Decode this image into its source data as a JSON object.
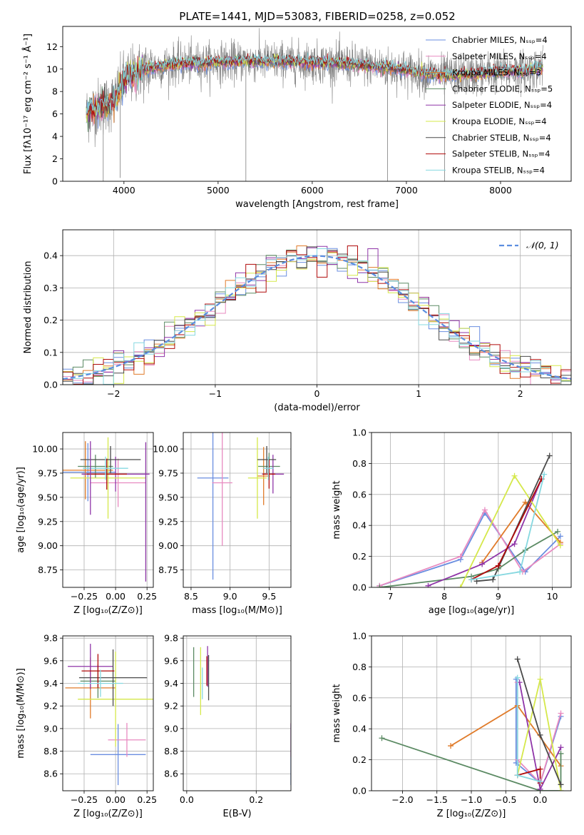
{
  "title": "PLATE=1441, MJD=53083, FIBERID=0258, z=0.052",
  "colors": {
    "Chabrier MILES": "#6a8ee0",
    "Salpeter MILES": "#e88ac0",
    "Kroupa MILES": "#e07b2a",
    "Chabrier ELODIE": "#5b8a63",
    "Salpeter ELODIE": "#8f35a8",
    "Kroupa ELODIE": "#d5e84a",
    "Chabrier STELIB": "#4a4a4a",
    "Salpeter STELIB": "#b00a0a",
    "Kroupa STELIB": "#86d8e0",
    "data": "#7f7f7f",
    "normal": "#5b8ee0"
  },
  "chart_data": [
    {
      "id": "spectrum",
      "type": "line",
      "title": "PLATE=1441, MJD=53083, FIBERID=0258, z=0.052",
      "xlabel": "wavelength [Angstrom, rest frame]",
      "ylabel": "Flux [fλ10⁻¹⁷ erg cm⁻² s⁻¹ Å⁻¹]",
      "xlim": [
        3350,
        8750
      ],
      "ylim": [
        0,
        13.8
      ],
      "xticks": [
        4000,
        5000,
        6000,
        7000,
        8000
      ],
      "yticks": [
        0,
        2,
        4,
        6,
        8,
        10,
        12
      ],
      "legend_position": "top-right",
      "continuum_x": [
        3600,
        3700,
        3800,
        3900,
        4000,
        4100,
        4200,
        4300,
        4500,
        4700,
        5000,
        5300,
        5600,
        6000,
        6300,
        6600,
        6900,
        7000,
        7200,
        7300,
        7500,
        7700,
        7900,
        8100,
        8300,
        8450
      ],
      "continuum_y": [
        6.0,
        6.5,
        6.8,
        7.2,
        9.0,
        9.5,
        9.9,
        10.1,
        10.4,
        10.5,
        10.6,
        10.7,
        10.7,
        10.6,
        10.5,
        10.3,
        10.0,
        9.9,
        9.6,
        9.5,
        9.4,
        9.5,
        9.7,
        9.8,
        9.9,
        10.2
      ],
      "series": [
        {
          "name": "Chabrier MILES",
          "label": "Chabrier MILES, Nₛₛₚ=4",
          "nssp": 4
        },
        {
          "name": "Salpeter MILES",
          "label": "Salpeter MILES, Nₛₛₚ=4",
          "nssp": 4
        },
        {
          "name": "Kroupa MILES",
          "label": "Kroupa MILES, Nₛₛₚ=3",
          "nssp": 3
        },
        {
          "name": "Chabrier ELODIE",
          "label": "Chabrier ELODIE, Nₛₛₚ=5",
          "nssp": 5
        },
        {
          "name": "Salpeter ELODIE",
          "label": "Salpeter ELODIE, Nₛₛₚ=4",
          "nssp": 4
        },
        {
          "name": "Kroupa ELODIE",
          "label": "Kroupa ELODIE, Nₛₛₚ=4",
          "nssp": 4
        },
        {
          "name": "Chabrier STELIB",
          "label": "Chabrier STELIB, Nₛₛₚ=4",
          "nssp": 4
        },
        {
          "name": "Salpeter STELIB",
          "label": "Salpeter STELIB, Nₛₛₚ=4",
          "nssp": 4
        },
        {
          "name": "Kroupa STELIB",
          "label": "Kroupa STELIB, Nₛₛₚ=4",
          "nssp": 4
        }
      ]
    },
    {
      "id": "residuals",
      "type": "line",
      "xlabel": "(data-model)/error",
      "ylabel": "Normed distribution",
      "xlim": [
        -2.5,
        2.5
      ],
      "ylim": [
        0,
        0.48
      ],
      "xticks": [
        -2,
        -1,
        0,
        1,
        2
      ],
      "yticks": [
        0.0,
        0.1,
        0.2,
        0.3,
        0.4
      ],
      "grid": true,
      "legend": "𝒩(0, 1)",
      "legend_position": "top-right",
      "bin_width": 0.1
    },
    {
      "id": "age_vs_Z",
      "type": "scatter",
      "xlabel": "Z [log₁₀(Z/Z⊙)]",
      "ylabel": "age  [log₁₀(age/yr)]",
      "xlim": [
        -0.42,
        0.3
      ],
      "ylim": [
        8.57,
        10.17
      ],
      "xticks": [
        -0.25,
        0.0,
        0.25
      ],
      "yticks": [
        8.75,
        9.0,
        9.25,
        9.5,
        9.75,
        10.0
      ],
      "grid": true,
      "points": [
        {
          "series": "Chabrier MILES",
          "x": -0.22,
          "y": 9.76,
          "xerr": 0.22,
          "yerr": 0.3
        },
        {
          "series": "Salpeter MILES",
          "x": 0.02,
          "y": 9.65,
          "xerr": 0.22,
          "yerr": 0.25
        },
        {
          "series": "Kroupa MILES",
          "x": -0.24,
          "y": 9.78,
          "xerr": 0.22,
          "yerr": 0.3
        },
        {
          "series": "Chabrier ELODIE",
          "x": -0.16,
          "y": 9.82,
          "xerr": 0.14,
          "yerr": 0.12
        },
        {
          "series": "Salpeter ELODIE",
          "x": 0.0,
          "y": 9.74,
          "xerr": 0.27,
          "yerr": 0.18
        },
        {
          "series": "Kroupa ELODIE",
          "x": -0.06,
          "y": 9.7,
          "xerr": 0.3,
          "yerr": 0.42
        },
        {
          "series": "Chabrier STELIB",
          "x": -0.04,
          "y": 9.89,
          "xerr": 0.24,
          "yerr": 0.14
        },
        {
          "series": "Salpeter STELIB",
          "x": -0.07,
          "y": 9.74,
          "xerr": 0.16,
          "yerr": 0.16
        },
        {
          "series": "Kroupa STELIB",
          "x": -0.08,
          "y": 9.8,
          "xerr": 0.18,
          "yerr": 0.12
        },
        {
          "series": "Salpeter ELODIE",
          "x": 0.24,
          "y": 9.35,
          "xerr": 0.0,
          "yerr": 0.72
        },
        {
          "series": "Salpeter ELODIE",
          "x": -0.2,
          "y": 9.7,
          "xerr": 0.0,
          "yerr": 0.38
        }
      ]
    },
    {
      "id": "age_vs_mass",
      "type": "scatter",
      "xlabel": "mass [log₁₀(M/M⊙)]",
      "ylabel": "",
      "xlim": [
        8.4,
        9.78
      ],
      "ylim": [
        8.57,
        10.17
      ],
      "xticks": [
        8.5,
        9.0,
        9.5
      ],
      "yticks": [
        8.75,
        9.0,
        9.25,
        9.5,
        9.75,
        10.0
      ],
      "grid": true,
      "points": [
        {
          "series": "Chabrier MILES",
          "x": 8.78,
          "y": 9.7,
          "xerr": 0.2,
          "yerr": 1.05
        },
        {
          "series": "Salpeter MILES",
          "x": 8.9,
          "y": 9.65,
          "xerr": 0.13,
          "yerr": 0.65
        },
        {
          "series": "Kroupa MILES",
          "x": 9.43,
          "y": 9.72,
          "xerr": 0.08,
          "yerr": 0.3
        },
        {
          "series": "Chabrier ELODIE",
          "x": 9.5,
          "y": 9.82,
          "xerr": 0.14,
          "yerr": 0.14
        },
        {
          "series": "Salpeter ELODIE",
          "x": 9.55,
          "y": 9.74,
          "xerr": 0.14,
          "yerr": 0.2
        },
        {
          "series": "Kroupa ELODIE",
          "x": 9.35,
          "y": 9.7,
          "xerr": 0.12,
          "yerr": 0.42
        },
        {
          "series": "Chabrier STELIB",
          "x": 9.47,
          "y": 9.89,
          "xerr": 0.12,
          "yerr": 0.14
        },
        {
          "series": "Salpeter STELIB",
          "x": 9.5,
          "y": 9.74,
          "xerr": 0.08,
          "yerr": 0.15
        },
        {
          "series": "Kroupa STELIB",
          "x": 9.49,
          "y": 9.8,
          "xerr": 0.07,
          "yerr": 0.12
        }
      ]
    },
    {
      "id": "weight_vs_age",
      "type": "line",
      "xlabel": "age  [log₁₀(age/yr)]",
      "ylabel": "mass weight",
      "xlim": [
        6.65,
        10.35
      ],
      "ylim": [
        0,
        1.0
      ],
      "xticks": [
        7,
        8,
        9,
        10
      ],
      "yticks": [
        0.0,
        0.2,
        0.4,
        0.6,
        0.8,
        1.0
      ],
      "grid": true,
      "series": [
        {
          "name": "Chabrier MILES",
          "x": [
            6.8,
            8.3,
            8.75,
            9.5,
            10.15
          ],
          "y": [
            0.01,
            0.18,
            0.48,
            0.1,
            0.33
          ]
        },
        {
          "name": "Salpeter MILES",
          "x": [
            6.8,
            8.3,
            8.75,
            9.45,
            10.15
          ],
          "y": [
            0.01,
            0.2,
            0.5,
            0.1,
            0.28
          ]
        },
        {
          "name": "Kroupa MILES",
          "x": [
            8.7,
            9.5,
            10.15
          ],
          "y": [
            0.16,
            0.55,
            0.29
          ]
        },
        {
          "name": "Chabrier ELODIE",
          "x": [
            6.8,
            8.5,
            9.0,
            9.5,
            10.1
          ],
          "y": [
            0.0,
            0.07,
            0.12,
            0.24,
            0.36
          ]
        },
        {
          "name": "Salpeter ELODIE",
          "x": [
            7.7,
            8.7,
            9.3,
            9.8
          ],
          "y": [
            0.01,
            0.15,
            0.28,
            0.7
          ]
        },
        {
          "name": "Kroupa ELODIE",
          "x": [
            8.3,
            9.3,
            10.15
          ],
          "y": [
            0.0,
            0.72,
            0.27
          ]
        },
        {
          "name": "Chabrier STELIB",
          "x": [
            8.6,
            8.9,
            9.95
          ],
          "y": [
            0.04,
            0.05,
            0.85
          ]
        },
        {
          "name": "Salpeter STELIB",
          "x": [
            8.5,
            9.0,
            9.8
          ],
          "y": [
            0.05,
            0.14,
            0.7
          ]
        },
        {
          "name": "Kroupa STELIB",
          "x": [
            8.5,
            9.4,
            9.85
          ],
          "y": [
            0.05,
            0.1,
            0.73
          ]
        }
      ]
    },
    {
      "id": "mass_vs_Z",
      "type": "scatter",
      "xlabel": "Z [log₁₀(Z/Z⊙)]",
      "ylabel": "mass [log₁₀(M/M⊙)]",
      "xlim": [
        -0.42,
        0.3
      ],
      "ylim": [
        8.45,
        9.82
      ],
      "xticks": [
        -0.25,
        0.0,
        0.25
      ],
      "yticks": [
        8.6,
        8.8,
        9.0,
        9.2,
        9.4,
        9.6,
        9.8
      ],
      "grid": true,
      "points": [
        {
          "series": "Chabrier MILES",
          "x": 0.02,
          "y": 8.77,
          "xerr": 0.22,
          "yerr": 0.27
        },
        {
          "series": "Salpeter MILES",
          "x": 0.09,
          "y": 8.9,
          "xerr": 0.15,
          "yerr": 0.15
        },
        {
          "series": "Kroupa MILES",
          "x": -0.2,
          "y": 9.36,
          "xerr": 0.2,
          "yerr": 0.27
        },
        {
          "series": "Chabrier ELODIE",
          "x": -0.14,
          "y": 9.42,
          "xerr": 0.14,
          "yerr": 0.15
        },
        {
          "series": "Salpeter ELODIE",
          "x": -0.2,
          "y": 9.55,
          "xerr": 0.18,
          "yerr": 0.2
        },
        {
          "series": "Kroupa ELODIE",
          "x": 0.0,
          "y": 9.26,
          "xerr": 0.3,
          "yerr": 0.42
        },
        {
          "series": "Chabrier STELIB",
          "x": -0.02,
          "y": 9.45,
          "xerr": 0.27,
          "yerr": 0.25
        },
        {
          "series": "Salpeter STELIB",
          "x": -0.14,
          "y": 9.51,
          "xerr": 0.13,
          "yerr": 0.15
        },
        {
          "series": "Kroupa STELIB",
          "x": -0.12,
          "y": 9.4,
          "xerr": 0.18,
          "yerr": 0.12
        }
      ]
    },
    {
      "id": "mass_vs_ebv",
      "type": "scatter",
      "xlabel": "E(B-V)",
      "ylabel": "",
      "xlim": [
        -0.01,
        0.3
      ],
      "ylim": [
        8.45,
        9.82
      ],
      "xticks": [
        0.0,
        0.2
      ],
      "yticks": [
        8.6,
        8.8,
        9.0,
        9.2,
        9.4,
        9.6,
        9.8
      ],
      "grid": true,
      "points": [
        {
          "series": "Chabrier MILES",
          "x": 0.3,
          "y": 8.77,
          "xerr": 0.0,
          "yerr": 0.27
        },
        {
          "series": "Salpeter MILES",
          "x": 0.3,
          "y": 8.9,
          "xerr": 0.0,
          "yerr": 0.15
        },
        {
          "series": "Kroupa MILES",
          "x": 0.058,
          "y": 9.5,
          "xerr": 0.0,
          "yerr": 0.12
        },
        {
          "series": "Chabrier ELODIE",
          "x": 0.02,
          "y": 9.5,
          "xerr": 0.0,
          "yerr": 0.22
        },
        {
          "series": "Salpeter ELODIE",
          "x": 0.06,
          "y": 9.55,
          "xerr": 0.0,
          "yerr": 0.18
        },
        {
          "series": "Kroupa ELODIE",
          "x": 0.04,
          "y": 9.42,
          "xerr": 0.0,
          "yerr": 0.3
        },
        {
          "series": "Chabrier STELIB",
          "x": 0.063,
          "y": 9.45,
          "xerr": 0.0,
          "yerr": 0.2
        },
        {
          "series": "Salpeter STELIB",
          "x": 0.058,
          "y": 9.51,
          "xerr": 0.0,
          "yerr": 0.13
        },
        {
          "series": "Kroupa STELIB",
          "x": 0.045,
          "y": 9.4,
          "xerr": 0.0,
          "yerr": 0.14
        }
      ]
    },
    {
      "id": "weight_vs_Z",
      "type": "line",
      "xlabel": "Z [log₁₀(Z/Z⊙)]",
      "ylabel": "mass weight",
      "xlim": [
        -2.45,
        0.45
      ],
      "ylim": [
        0,
        1.0
      ],
      "xticks": [
        -2.0,
        -1.5,
        -1.0,
        -0.5,
        0.0
      ],
      "yticks": [
        0.0,
        0.2,
        0.4,
        0.6,
        0.8,
        1.0
      ],
      "grid": true,
      "series": [
        {
          "name": "Chabrier MILES",
          "x": [
            -0.35,
            -0.35,
            0.0,
            0.3
          ],
          "y": [
            0.72,
            0.18,
            0.05,
            0.48
          ]
        },
        {
          "name": "Salpeter MILES",
          "x": [
            -0.33,
            -0.33,
            0.0,
            0.3
          ],
          "y": [
            0.7,
            0.2,
            0.05,
            0.5
          ]
        },
        {
          "name": "Kroupa MILES",
          "x": [
            -1.3,
            -0.33,
            0.3
          ],
          "y": [
            0.29,
            0.55,
            0.16
          ]
        },
        {
          "name": "Chabrier ELODIE",
          "x": [
            -2.3,
            0.0,
            0.3,
            0.3
          ],
          "y": [
            0.34,
            0.0,
            0.0,
            0.24
          ]
        },
        {
          "name": "Salpeter ELODIE",
          "x": [
            -0.3,
            0.0,
            0.3
          ],
          "y": [
            0.7,
            0.01,
            0.28
          ]
        },
        {
          "name": "Kroupa ELODIE",
          "x": [
            -0.33,
            0.0,
            0.3
          ],
          "y": [
            0.1,
            0.72,
            0.0
          ]
        },
        {
          "name": "Chabrier STELIB",
          "x": [
            -0.33,
            0.0,
            0.3
          ],
          "y": [
            0.85,
            0.36,
            0.04
          ]
        },
        {
          "name": "Salpeter STELIB",
          "x": [
            -0.33,
            0.0,
            0.0
          ],
          "y": [
            0.1,
            0.14,
            0.05
          ]
        },
        {
          "name": "Kroupa STELIB",
          "x": [
            -0.33,
            -0.33,
            0.0
          ],
          "y": [
            0.73,
            0.1,
            0.06
          ]
        }
      ]
    }
  ]
}
